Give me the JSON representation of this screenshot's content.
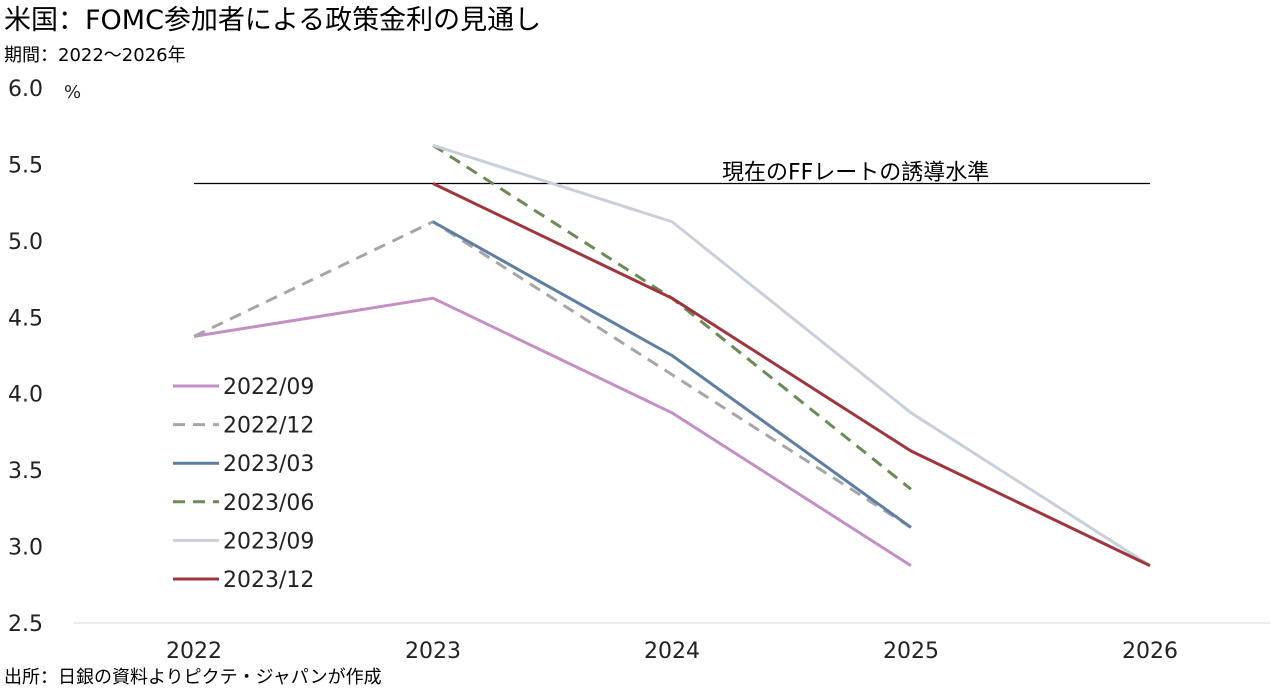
{
  "header": {
    "title": "米国：FOMC参加者による政策金利の見通し",
    "period": "期間：2022～2026年"
  },
  "footer": {
    "source": "出所：日銀の資料よりピクテ・ジャパンが作成"
  },
  "chart_data": {
    "type": "line",
    "title": "米国：FOMC参加者による政策金利の見通し",
    "subtitle": "期間：2022～2026年",
    "xlabel": "",
    "ylabel": "%",
    "categories": [
      "2022",
      "2023",
      "2024",
      "2025",
      "2026"
    ],
    "ylim": [
      2.5,
      6.0
    ],
    "yticks": [
      "6.0",
      "5.5",
      "5.0",
      "4.5",
      "4.0",
      "3.5",
      "3.0",
      "2.5"
    ],
    "grid": false,
    "legend_position": "left-middle",
    "series": [
      {
        "name": "2022/09",
        "color": "#c58fc5",
        "dash": "solid",
        "values": [
          4.375,
          4.625,
          3.875,
          2.875,
          null
        ]
      },
      {
        "name": "2022/12",
        "color": "#a6a6a6",
        "dash": "dashed",
        "values": [
          4.375,
          5.125,
          4.125,
          3.125,
          null
        ]
      },
      {
        "name": "2023/03",
        "color": "#5e7fa3",
        "dash": "solid",
        "values": [
          null,
          5.125,
          4.25,
          3.125,
          null
        ]
      },
      {
        "name": "2023/06",
        "color": "#6b8a55",
        "dash": "dashed",
        "values": [
          null,
          5.625,
          4.625,
          3.375,
          null
        ]
      },
      {
        "name": "2023/09",
        "color": "#c9d0da",
        "dash": "solid",
        "values": [
          null,
          5.625,
          5.125,
          3.875,
          2.875
        ]
      },
      {
        "name": "2023/12",
        "color": "#a0353e",
        "dash": "solid",
        "values": [
          null,
          5.375,
          4.625,
          3.625,
          2.875
        ]
      }
    ],
    "reference_line": {
      "label": "現在のFFレートの誘導水準",
      "value": 5.375,
      "x_start": "2022",
      "x_end": "2026",
      "color": "#000000"
    }
  }
}
